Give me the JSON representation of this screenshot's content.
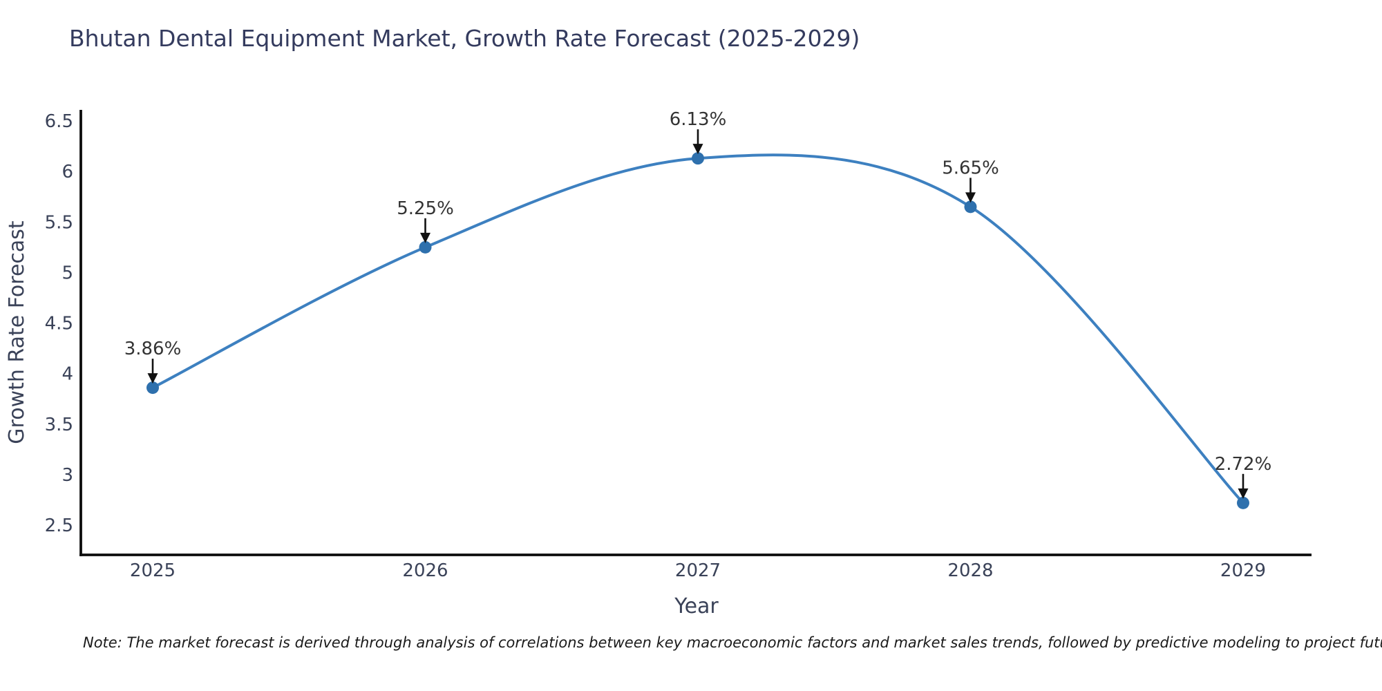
{
  "title": "Bhutan Dental Equipment Market, Growth Rate Forecast (2025-2029)",
  "note": "Note: The market forecast is derived through analysis of correlations between key macroeconomic factors and market sales trends, followed by predictive modeling to project future sales",
  "chart_data": {
    "type": "line",
    "line_shape": "spline",
    "title": "Bhutan Dental Equipment Market, Growth Rate Forecast (2025-2029)",
    "xlabel": "Year",
    "ylabel": "Growth Rate Forecast",
    "categories": [
      "2025",
      "2026",
      "2027",
      "2028",
      "2029"
    ],
    "values": [
      3.86,
      5.25,
      6.13,
      5.65,
      2.72
    ],
    "point_labels": [
      "3.86%",
      "5.25%",
      "6.13%",
      "5.65%",
      "2.72%"
    ],
    "ytick_labels": [
      "6.5",
      "6",
      "5.5",
      "5",
      "4.5",
      "4",
      "3.5",
      "3",
      "2.5"
    ],
    "ylim": [
      2.22,
      6.6
    ],
    "grid": false,
    "legend": "none",
    "annotations_have_arrows": true,
    "colors": {
      "line": "#3d80c0",
      "marker": "#2e70ad",
      "axis": "#0d0d0d",
      "tick_text": "#3a4258",
      "axis_title_text": "#3a4258",
      "title_text": "#343b5e",
      "annotation_text": "#333333",
      "arrow": "#111111",
      "note_text": "#1a1a1a",
      "background": "#ffffff"
    }
  }
}
